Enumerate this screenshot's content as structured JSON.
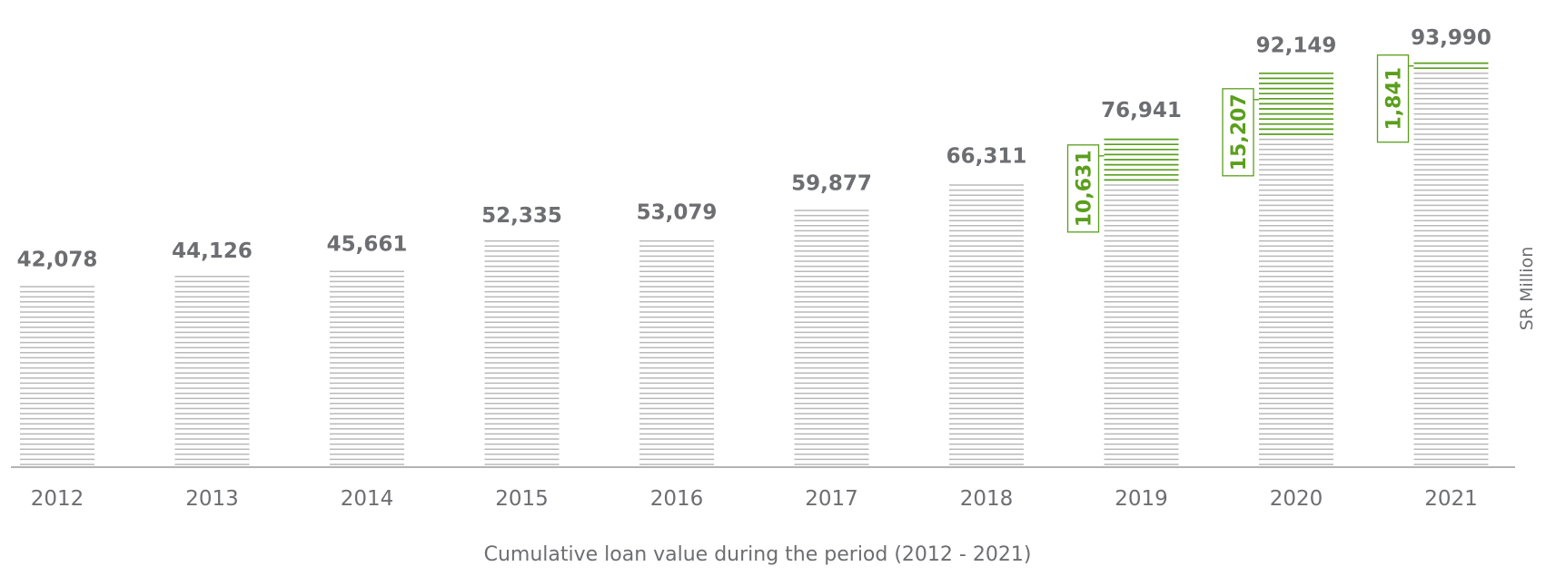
{
  "chart_data": {
    "type": "bar",
    "title": "",
    "xlabel": "Cumulative loan value during the period (2012 - 2021)",
    "ylabel": "SR Million",
    "categories": [
      "2012",
      "2013",
      "2014",
      "2015",
      "2016",
      "2017",
      "2018",
      "2019",
      "2020",
      "2021"
    ],
    "values": [
      42078,
      44126,
      45661,
      52335,
      53079,
      59877,
      66311,
      76941,
      92149,
      93990
    ],
    "value_labels": [
      "42,078",
      "44,126",
      "45,661",
      "52,335",
      "53,079",
      "59,877",
      "66,311",
      "76,941",
      "92,149",
      "93,990"
    ],
    "increases": [
      {
        "category": "2019",
        "value": 10631,
        "label": "10,631"
      },
      {
        "category": "2020",
        "value": 15207,
        "label": "15,207"
      },
      {
        "category": "2021",
        "value": 1841,
        "label": "1,841"
      }
    ],
    "grid": false,
    "colors": {
      "bar": "#b9b9b9",
      "increase": "#5a9f1c",
      "text": "#6d6e71",
      "axis": "#b3b3b3"
    }
  }
}
